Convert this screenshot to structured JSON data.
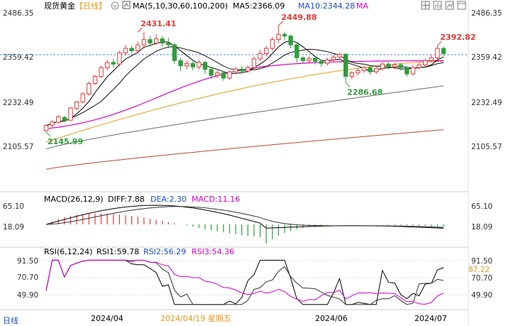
{
  "header": {
    "title": "现货黄金",
    "period": "【日线】",
    "ma_label": "MA(5,10,30,60,100,200)",
    "ma5": "MA5:2366.09",
    "ma10": "MA10:2344.28",
    "ma_extra": "MA"
  },
  "toolbar": {
    "icons": [
      "grid-icon",
      "bar-chart-icon",
      "line-chart-icon",
      "window-icon"
    ]
  },
  "footer": {
    "period_badge": "日线",
    "date_labels": [
      "2024/04",
      "2024/06",
      "2024/07"
    ],
    "cursor_date": "2024/04/19 星期五"
  },
  "colors": {
    "up": "#e53935",
    "down": "#2e9d3a",
    "ma5": "#000000",
    "ma10": "#111111",
    "ma30": "#d400c8",
    "ma60": "#e69a1c",
    "ma100": "#6b6b6b",
    "ma200": "#b54a33",
    "hdr_blue": "#1a4fbf",
    "hdr_pink": "#d400c8",
    "hdr_orange": "#e69a1c"
  },
  "chart_data": {
    "type": "candlestick",
    "axes": {
      "price_ticks": [
        "2486.35",
        "2359.42",
        "2232.49",
        "2105.57"
      ],
      "macd_ticks": [
        "65.10",
        "18.09"
      ],
      "rsi_ticks": [
        "91.50",
        "70.70",
        "49.90"
      ],
      "current_price_label": "2359.42",
      "rsi_right_value": "87.22"
    },
    "annotations": [
      {
        "text": "2431.41",
        "value": 2431.41,
        "index": 15
      },
      {
        "text": "2449.88",
        "value": 2449.88,
        "index": 38
      },
      {
        "text": "2286.68",
        "value": 2286.68,
        "index": 49
      },
      {
        "text": "2392.82",
        "value": 2392.82,
        "index": 64
      },
      {
        "text": "2145.99",
        "value": 2145.99,
        "index": 0
      }
    ],
    "candles": [
      [
        2150,
        2165,
        2146,
        2168
      ],
      [
        2166,
        2175,
        2160,
        2180
      ],
      [
        2174,
        2190,
        2170,
        2195
      ],
      [
        2188,
        2180,
        2175,
        2192
      ],
      [
        2180,
        2215,
        2178,
        2218
      ],
      [
        2214,
        2232,
        2208,
        2235
      ],
      [
        2232,
        2255,
        2228,
        2260
      ],
      [
        2255,
        2285,
        2250,
        2290
      ],
      [
        2285,
        2305,
        2280,
        2310
      ],
      [
        2305,
        2330,
        2300,
        2335
      ],
      [
        2330,
        2345,
        2322,
        2352
      ],
      [
        2345,
        2340,
        2330,
        2355
      ],
      [
        2340,
        2372,
        2335,
        2378
      ],
      [
        2372,
        2385,
        2365,
        2395
      ],
      [
        2385,
        2378,
        2370,
        2392
      ],
      [
        2378,
        2395,
        2370,
        2405
      ],
      [
        2395,
        2410,
        2388,
        2431
      ],
      [
        2410,
        2400,
        2390,
        2420
      ],
      [
        2400,
        2412,
        2395,
        2425
      ],
      [
        2412,
        2400,
        2390,
        2420
      ],
      [
        2400,
        2395,
        2385,
        2415
      ],
      [
        2395,
        2350,
        2340,
        2400
      ],
      [
        2350,
        2335,
        2320,
        2358
      ],
      [
        2335,
        2342,
        2325,
        2350
      ],
      [
        2342,
        2332,
        2322,
        2348
      ],
      [
        2332,
        2345,
        2325,
        2352
      ],
      [
        2345,
        2325,
        2312,
        2350
      ],
      [
        2325,
        2308,
        2298,
        2332
      ],
      [
        2308,
        2315,
        2300,
        2322
      ],
      [
        2315,
        2300,
        2292,
        2320
      ],
      [
        2300,
        2318,
        2295,
        2322
      ],
      [
        2318,
        2326,
        2312,
        2332
      ],
      [
        2326,
        2320,
        2312,
        2335
      ],
      [
        2320,
        2330,
        2315,
        2336
      ],
      [
        2330,
        2355,
        2325,
        2362
      ],
      [
        2355,
        2370,
        2348,
        2380
      ],
      [
        2370,
        2385,
        2362,
        2392
      ],
      [
        2385,
        2410,
        2378,
        2418
      ],
      [
        2410,
        2425,
        2400,
        2449
      ],
      [
        2425,
        2420,
        2408,
        2432
      ],
      [
        2420,
        2395,
        2385,
        2425
      ],
      [
        2395,
        2358,
        2345,
        2400
      ],
      [
        2358,
        2350,
        2340,
        2362
      ],
      [
        2350,
        2356,
        2342,
        2362
      ],
      [
        2356,
        2348,
        2338,
        2360
      ],
      [
        2348,
        2342,
        2332,
        2352
      ],
      [
        2342,
        2352,
        2336,
        2358
      ],
      [
        2352,
        2360,
        2345,
        2366
      ],
      [
        2360,
        2368,
        2352,
        2372
      ],
      [
        2368,
        2305,
        2287,
        2372
      ],
      [
        2305,
        2315,
        2298,
        2320
      ],
      [
        2315,
        2322,
        2308,
        2328
      ],
      [
        2322,
        2330,
        2315,
        2335
      ],
      [
        2330,
        2318,
        2310,
        2336
      ],
      [
        2318,
        2328,
        2312,
        2334
      ],
      [
        2328,
        2340,
        2322,
        2345
      ],
      [
        2340,
        2332,
        2325,
        2346
      ],
      [
        2332,
        2338,
        2325,
        2344
      ],
      [
        2338,
        2330,
        2322,
        2342
      ],
      [
        2330,
        2312,
        2305,
        2335
      ],
      [
        2312,
        2330,
        2308,
        2336
      ],
      [
        2330,
        2338,
        2325,
        2344
      ],
      [
        2338,
        2350,
        2332,
        2356
      ],
      [
        2350,
        2358,
        2345,
        2366
      ],
      [
        2358,
        2385,
        2352,
        2393
      ],
      [
        2385,
        2370,
        2362,
        2390
      ]
    ]
  }
}
